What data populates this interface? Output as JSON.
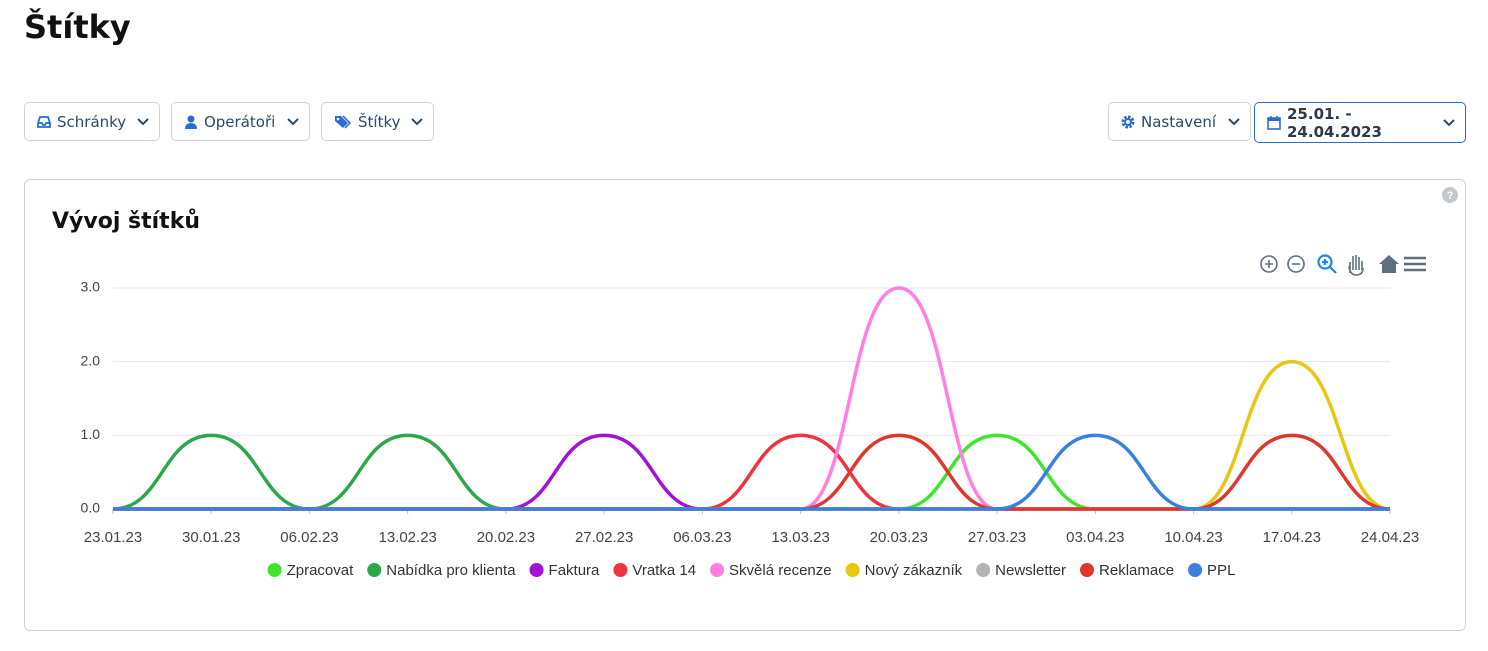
{
  "header": {
    "title": "Štítky"
  },
  "filters": [
    "Schránky",
    "Operátoři",
    "Štítky"
  ],
  "settings": "Nastavení",
  "date_range": "25.01. - 24.04.2023",
  "card": {
    "title": "Vývoj štítků"
  },
  "chart_data": {
    "type": "line",
    "smooth": true,
    "grid": true,
    "categories": [
      "23.01.23",
      "30.01.23",
      "06.02.23",
      "13.02.23",
      "20.02.23",
      "27.02.23",
      "06.03.23",
      "13.03.23",
      "20.03.23",
      "27.03.23",
      "03.04.23",
      "10.04.23",
      "17.04.23",
      "24.04.23"
    ],
    "ylim": [
      0,
      3
    ],
    "yticks": [
      {
        "value": 0,
        "label": "0.0"
      },
      {
        "value": 1,
        "label": "1.0"
      },
      {
        "value": 2,
        "label": "2.0"
      },
      {
        "value": 3,
        "label": "3.0"
      }
    ],
    "series": [
      {
        "name": "Zpracovat",
        "color": "#3ee52a",
        "values": [
          0,
          0,
          0,
          0,
          0,
          0,
          0,
          0,
          0,
          1,
          0,
          0,
          0,
          0
        ]
      },
      {
        "name": "Nabídka pro klienta",
        "color": "#2aa84a",
        "values": [
          0,
          1,
          0,
          1,
          0,
          0,
          0,
          0,
          0,
          0,
          0,
          0,
          0,
          0
        ]
      },
      {
        "name": "Faktura",
        "color": "#a112d6",
        "values": [
          0,
          0,
          0,
          0,
          0,
          1,
          0,
          0,
          0,
          0,
          0,
          0,
          0,
          0
        ]
      },
      {
        "name": "Vratka 14",
        "color": "#f2323f",
        "values": [
          0,
          0,
          0,
          0,
          0,
          0,
          0,
          1,
          0,
          0,
          0,
          0,
          0,
          0
        ]
      },
      {
        "name": "Skvělá recenze",
        "color": "#ff80e0",
        "values": [
          0,
          0,
          0,
          0,
          0,
          0,
          0,
          0,
          3,
          0,
          0,
          0,
          0,
          0
        ]
      },
      {
        "name": "Nový zákazník",
        "color": "#e8c612",
        "values": [
          0,
          0,
          0,
          0,
          0,
          0,
          0,
          0,
          0,
          0,
          0,
          0,
          2,
          0
        ]
      },
      {
        "name": "Newsletter",
        "color": "#b3b3b3",
        "values": [
          0,
          0,
          0,
          0,
          0,
          0,
          0,
          0,
          0,
          0,
          0,
          0,
          0,
          0
        ]
      },
      {
        "name": "Reklamace",
        "color": "#e0362c",
        "values": [
          0,
          0,
          0,
          0,
          0,
          0,
          0,
          0,
          1,
          0,
          0,
          0,
          1,
          0
        ]
      },
      {
        "name": "PPL",
        "color": "#3a80e0",
        "values": [
          0,
          0,
          0,
          0,
          0,
          0,
          0,
          0,
          0,
          0,
          1,
          0,
          0,
          0
        ]
      }
    ]
  }
}
